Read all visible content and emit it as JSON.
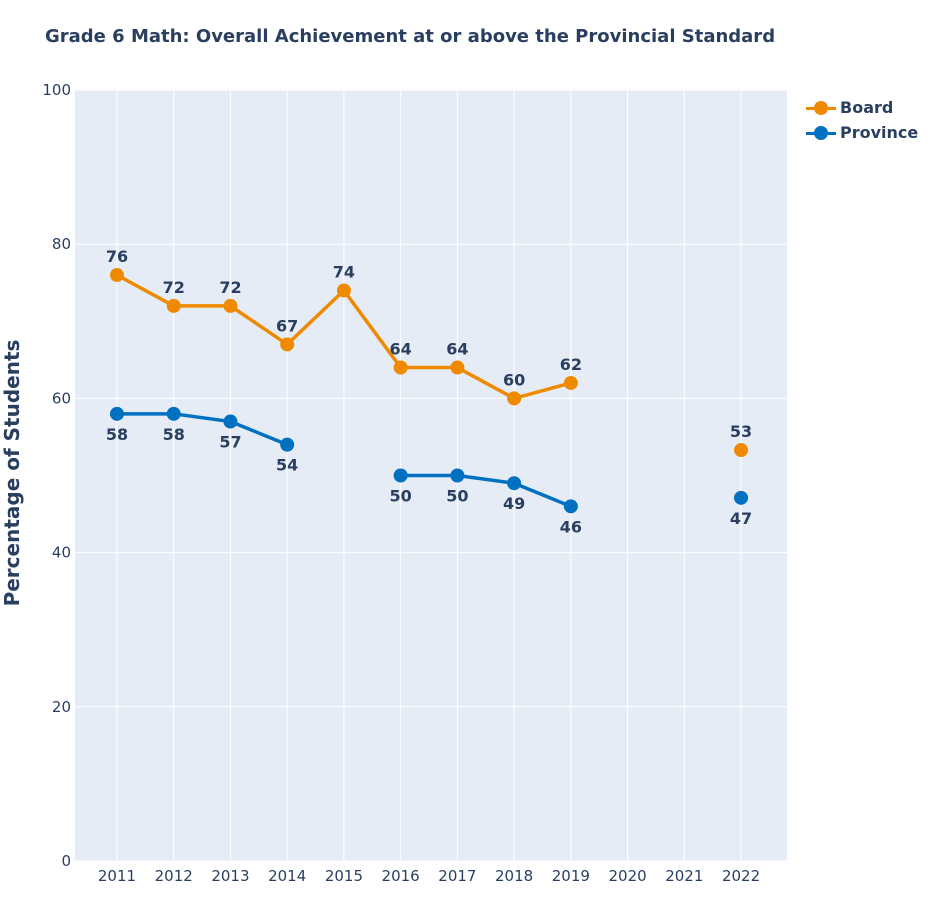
{
  "chart_data": {
    "type": "line",
    "title": "Grade 6 Math: Overall Achievement at or above the Provincial Standard",
    "xlabel": "",
    "ylabel": "Percentage of Students",
    "x": [
      2011,
      2012,
      2013,
      2014,
      2015,
      2016,
      2017,
      2018,
      2019,
      2020,
      2021,
      2022
    ],
    "xticks": [
      "2011",
      "2012",
      "2013",
      "2014",
      "2015",
      "2016",
      "2017",
      "2018",
      "2019",
      "2020",
      "2021",
      "2022"
    ],
    "ylim": [
      0,
      100
    ],
    "yticks": [
      "0",
      "20",
      "40",
      "60",
      "80",
      "100"
    ],
    "grid": true,
    "legend_position": "top-right",
    "series": [
      {
        "name": "Board",
        "color": "#EF8A00",
        "values": [
          76,
          72,
          72,
          67,
          74,
          64,
          64,
          60,
          62,
          null,
          null,
          53.3
        ],
        "labels": [
          "76",
          "72",
          "72",
          "67",
          "74",
          "64",
          "64",
          "60",
          "62",
          "",
          "",
          "53"
        ],
        "label_position": "above"
      },
      {
        "name": "Province",
        "color": "#0070C0",
        "values": [
          58,
          58,
          57,
          54,
          null,
          50,
          50,
          49,
          46,
          null,
          null,
          47.1
        ],
        "labels": [
          "58",
          "58",
          "57",
          "54",
          "",
          "50",
          "50",
          "49",
          "46",
          "",
          "",
          "47"
        ],
        "label_position": "below"
      }
    ]
  }
}
